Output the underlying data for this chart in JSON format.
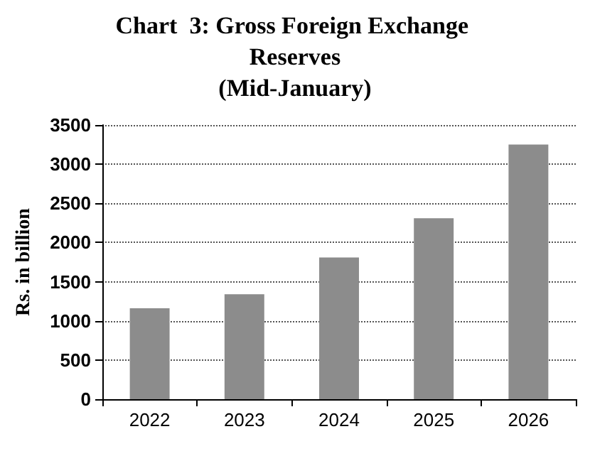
{
  "chart_data": {
    "type": "bar",
    "title": "Chart  3: Gross Foreign Exchange Reserves",
    "subtitle": "(Mid-January)",
    "ylabel": "Rs. in billion",
    "categories": [
      "2022",
      "2023",
      "2024",
      "2025",
      "2026"
    ],
    "values": [
      1160,
      1340,
      1810,
      2310,
      3250
    ],
    "color": "#8c8c8c",
    "ylim": [
      0,
      3500
    ],
    "yticks": [
      0,
      500,
      1000,
      1500,
      2000,
      2500,
      3000,
      3500
    ],
    "grid": "y"
  }
}
